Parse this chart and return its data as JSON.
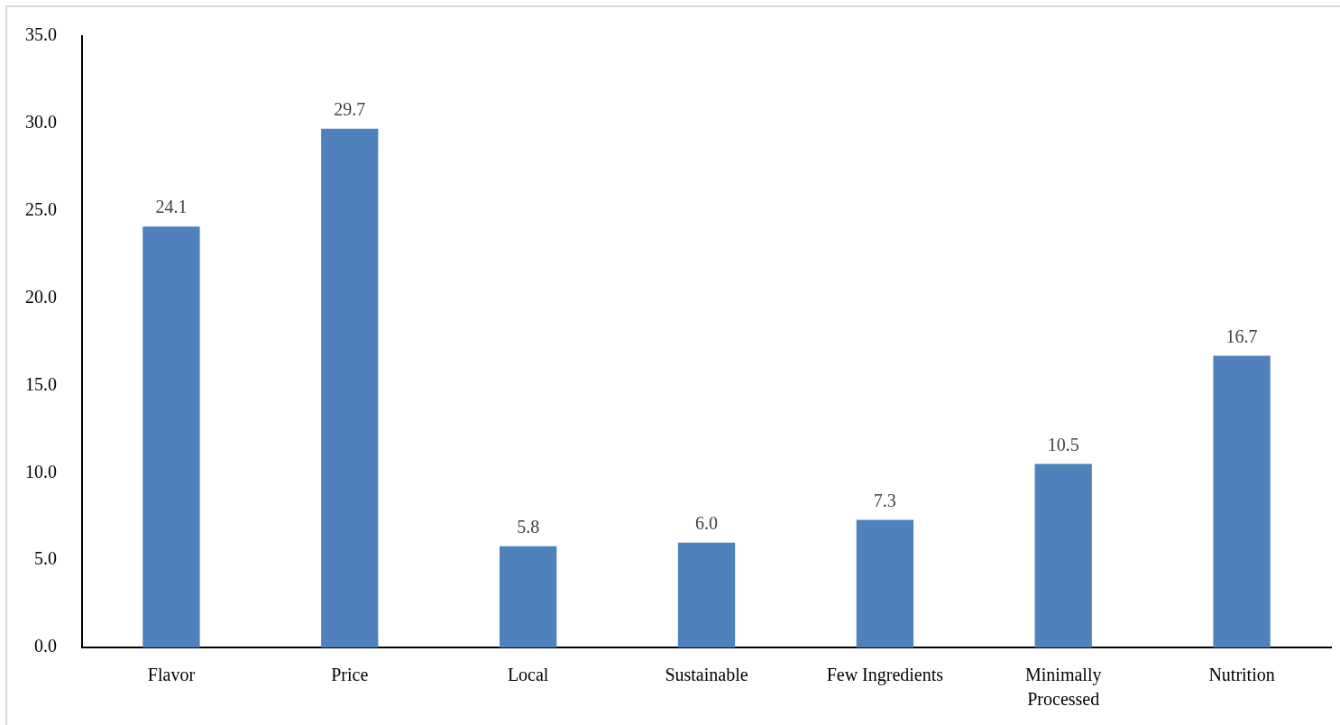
{
  "chart_data": {
    "type": "bar",
    "categories": [
      "Flavor",
      "Price",
      "Local",
      "Sustainable",
      "Few Ingredients",
      "Minimally Processed",
      "Nutrition"
    ],
    "values": [
      24.1,
      29.7,
      5.8,
      6.0,
      7.3,
      10.5,
      16.7
    ],
    "value_labels": [
      "24.1",
      "29.7",
      "5.8",
      "6.0",
      "7.3",
      "10.5",
      "16.7"
    ],
    "color": "#4f81bd",
    "ylim": [
      0,
      35
    ],
    "yticks": [
      {
        "value": 0,
        "label": "0.0"
      },
      {
        "value": 5,
        "label": "5.0"
      },
      {
        "value": 10,
        "label": "10.0"
      },
      {
        "value": 15,
        "label": "15.0"
      },
      {
        "value": 20,
        "label": "20.0"
      },
      {
        "value": 25,
        "label": "25.0"
      },
      {
        "value": 30,
        "label": "30.0"
      },
      {
        "value": 35,
        "label": "35.0"
      }
    ]
  }
}
